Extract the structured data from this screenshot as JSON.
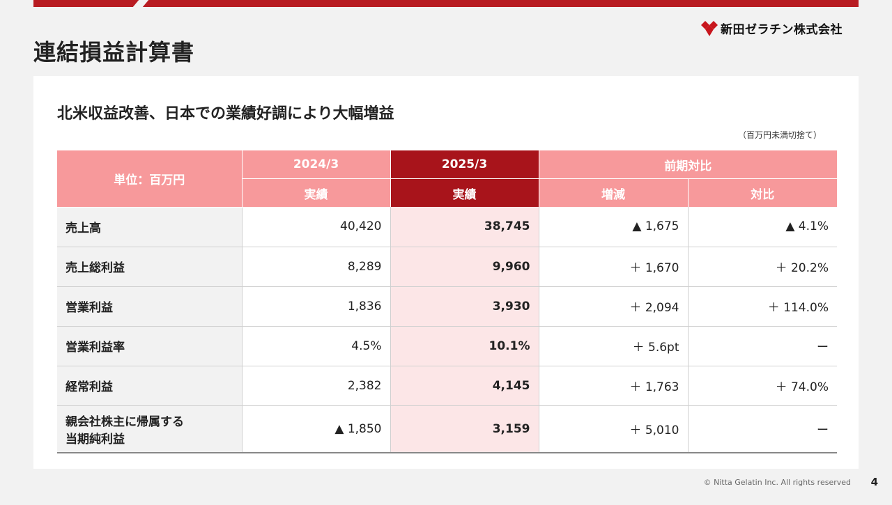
{
  "page": {
    "title": "連結損益計算書",
    "headline": "北米収益改善、日本での業績好調により大幅増益",
    "note": "（百万円未満切捨て）",
    "footer": "© Nitta Gelatin Inc. All rights reserved",
    "page_number": "4"
  },
  "brand": {
    "name": "新田ゼラチン株式会社",
    "accent": "#b81c22"
  },
  "table": {
    "unit_label": "単位：百万円",
    "col_2024": "2024/3",
    "col_2025": "2025/3",
    "col_compare": "前期対比",
    "sub_2024": "実績",
    "sub_2025": "実績",
    "sub_diff": "増減",
    "sub_ratio": "対比",
    "rows": [
      {
        "label": "売上高",
        "v2024": "40,420",
        "v2025": "38,745",
        "diff": "▲ 1,675",
        "ratio": "▲ 4.1%"
      },
      {
        "label": "売上総利益",
        "v2024": "8,289",
        "v2025": "9,960",
        "diff": "＋ 1,670",
        "ratio": "＋ 20.2%"
      },
      {
        "label": "営業利益",
        "v2024": "1,836",
        "v2025": "3,930",
        "diff": "＋ 2,094",
        "ratio": "＋ 114.0%"
      },
      {
        "label": "営業利益率",
        "v2024": "4.5%",
        "v2025": "10.1%",
        "diff": "＋ 5.6pt",
        "ratio": "ー"
      },
      {
        "label": "経常利益",
        "v2024": "2,382",
        "v2025": "4,145",
        "diff": "＋ 1,763",
        "ratio": "＋ 74.0%"
      },
      {
        "label_line1": "親会社株主に帰属する",
        "label_line2": "当期純利益",
        "v2024": "▲ 1,850",
        "v2025": "3,159",
        "diff": "＋ 5,010",
        "ratio": "ー"
      }
    ]
  }
}
